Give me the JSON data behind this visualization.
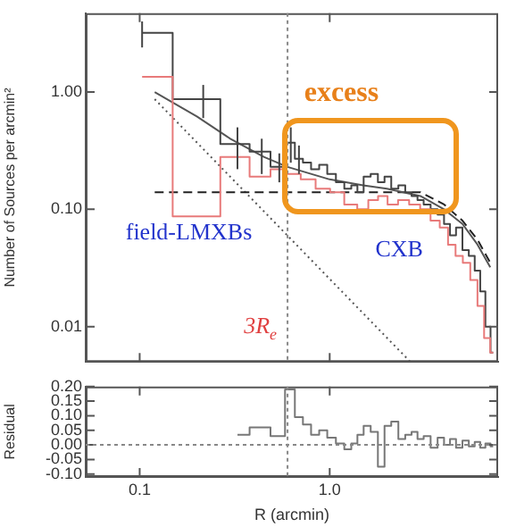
{
  "chart_data": [
    {
      "type": "step",
      "ylabel": "Number of Sources per arcmin²",
      "xlim": [
        0.052,
        7.7
      ],
      "ylim": [
        0.005,
        4.7
      ],
      "yticks": [
        {
          "value": 1,
          "label": "1.00"
        },
        {
          "value": 0.1,
          "label": "0.10"
        },
        {
          "value": 0.01,
          "label": "0.01"
        }
      ],
      "log": "xy",
      "tick_labels": "y",
      "grid": false,
      "series": [
        {
          "type": "step",
          "color": "#e87a7a",
          "x": [
            0.103,
            0.216,
            0.327,
            0.439,
            0.543,
            0.643,
            0.771,
            0.922,
            1.095,
            1.3,
            1.5,
            1.7,
            1.9,
            2.14,
            2.45,
            2.8,
            3.2,
            3.6,
            4.0,
            4.4,
            4.8,
            5.25,
            5.75,
            6.25,
            6.75,
            7.25
          ],
          "values": [
            1.35,
            0.087,
            0.28,
            0.19,
            0.22,
            0.2,
            0.18,
            0.15,
            0.14,
            0.11,
            0.1,
            0.12,
            0.13,
            0.11,
            0.12,
            0.11,
            0.1,
            0.08,
            0.07,
            0.05,
            0.04,
            0.035,
            0.025,
            0.015,
            0.008,
            0.006
          ]
        },
        {
          "type": "step",
          "color": "#444444",
          "x": [
            0.103,
            0.216,
            0.327,
            0.439,
            0.543,
            0.624,
            0.689,
            0.759,
            0.839,
            0.924,
            1.02,
            1.14,
            1.25,
            1.35,
            1.45,
            1.57,
            1.72,
            1.87,
            2.02,
            2.2,
            2.4,
            2.6,
            2.8,
            3.0,
            3.25,
            3.55,
            3.85,
            4.15,
            4.45,
            4.8,
            5.2,
            5.6,
            6.0,
            6.4,
            6.8,
            7.25
          ],
          "values": [
            3.2,
            0.87,
            0.36,
            0.31,
            0.23,
            0.37,
            0.27,
            0.25,
            0.22,
            0.24,
            0.2,
            0.17,
            0.15,
            0.16,
            0.14,
            0.19,
            0.2,
            0.17,
            0.19,
            0.15,
            0.16,
            0.14,
            0.13,
            0.12,
            0.11,
            0.1,
            0.09,
            0.075,
            0.06,
            0.07,
            0.045,
            0.04,
            0.03,
            0.02,
            0.01,
            0.006
          ],
          "errors": [
            [
              2.4,
              4.0
            ],
            [
              0.6,
              1.15
            ],
            [
              0.22,
              0.5
            ],
            [
              0.2,
              0.4
            ],
            [
              0.17,
              0.3
            ],
            [
              0.25,
              0.5
            ],
            [
              0.2,
              0.35
            ],
            null,
            null,
            null,
            null,
            null,
            null,
            null,
            null,
            null,
            null,
            null,
            null,
            null,
            null,
            null,
            null,
            null,
            null,
            null,
            null,
            null,
            null,
            null,
            null,
            null,
            null,
            null,
            null,
            null
          ]
        },
        {
          "type": "line",
          "color": "#555555",
          "x": [
            0.12,
            0.2,
            0.3,
            0.45,
            0.6,
            1.0,
            1.5,
            2.0,
            3.0,
            4.0,
            5.0,
            6.0,
            7.0
          ],
          "values": [
            1.0,
            0.62,
            0.4,
            0.28,
            0.23,
            0.18,
            0.16,
            0.15,
            0.13,
            0.1,
            0.075,
            0.05,
            0.032
          ]
        },
        {
          "type": "line",
          "color": "#222222",
          "line_style": "dashed",
          "x": [
            0.12,
            3.0,
            4.0,
            5.0,
            6.0,
            7.0
          ],
          "values": [
            0.14,
            0.14,
            0.11,
            0.08,
            0.055,
            0.035
          ]
        },
        {
          "type": "line",
          "color": "#555555",
          "line_style": "dotted",
          "x": [
            0.12,
            2.66
          ],
          "values": [
            0.87,
            0.005
          ]
        }
      ],
      "ref_lines": [
        {
          "axis": "x",
          "value": 0.6,
          "label": "3R$_{e}$",
          "color": "#888888",
          "line_style": "dotted"
        }
      ],
      "annotations": [
        "excess",
        "field-LMXBs",
        "CXB"
      ]
    },
    {
      "type": "step",
      "xlabel": "R (arcmin)",
      "ylabel": "Residual",
      "xlim": [
        0.052,
        7.7
      ],
      "xticks": [
        0.1,
        {
          "value": 1,
          "label": "1.0"
        }
      ],
      "ylim": [
        -0.11,
        0.2
      ],
      "yticks": [
        {
          "value": -0.1,
          "label": "-0.10"
        },
        {
          "value": -0.05,
          "label": "-0.05"
        },
        {
          "value": 0,
          "label": "0.00"
        },
        {
          "value": 0.05,
          "label": "0.05"
        },
        {
          "value": 0.1,
          "label": "0.10"
        },
        {
          "value": 0.15,
          "label": "0.15"
        },
        {
          "value": 0.2,
          "label": "0.20"
        }
      ],
      "log": "x",
      "grid": false,
      "series": [
        {
          "type": "step",
          "color": "#777777",
          "x": [
            0.327,
            0.439,
            0.543,
            0.624,
            0.689,
            0.759,
            0.839,
            0.924,
            1.02,
            1.14,
            1.25,
            1.35,
            1.45,
            1.57,
            1.72,
            1.87,
            2.02,
            2.2,
            2.4,
            2.6,
            2.8,
            3.0,
            3.25,
            3.55,
            3.85,
            4.15,
            4.45,
            4.8,
            5.2,
            5.6,
            6.0,
            6.4,
            6.8,
            7.25
          ],
          "values": [
            0.035,
            0.06,
            0.03,
            0.19,
            0.095,
            0.07,
            0.035,
            0.05,
            0.025,
            0.005,
            -0.015,
            0.005,
            0.035,
            0.065,
            0.045,
            -0.075,
            0.065,
            0.08,
            0.02,
            0.035,
            0.045,
            0.02,
            0.03,
            -0.01,
            0.025,
            0.0,
            0.02,
            -0.01,
            0.015,
            -0.005,
            0.01,
            -0.01,
            0.005,
            -0.005
          ]
        }
      ],
      "ref_lines": [
        {
          "axis": "x",
          "value": 0.6,
          "color": "#888888",
          "line_style": "dotted"
        },
        {
          "axis": "y",
          "value": 0,
          "color": "#888888",
          "line_style": "dotted"
        }
      ]
    }
  ]
}
